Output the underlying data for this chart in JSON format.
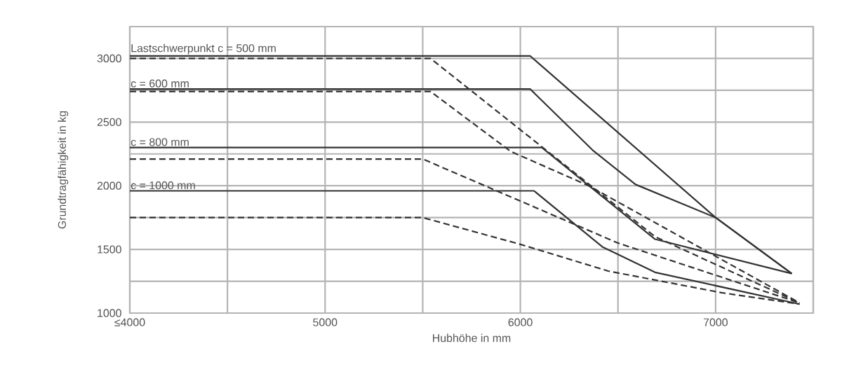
{
  "chart_data": {
    "type": "line",
    "xlabel": "Hubhöhe in mm",
    "ylabel": "Grundtragfähigkeit in kg",
    "xlim": [
      4000,
      7500
    ],
    "ylim": [
      1000,
      3250
    ],
    "xticks": [
      {
        "value": 4000,
        "label": "≤4000"
      },
      {
        "value": 4500,
        "label": null
      },
      5000,
      {
        "value": 5500,
        "label": null
      },
      6000,
      {
        "value": 6500,
        "label": null
      },
      7000,
      {
        "value": 7500,
        "label": null
      }
    ],
    "yticks": [
      1000,
      {
        "value": 1250,
        "label": null
      },
      1500,
      {
        "value": 1750,
        "label": null
      },
      2000,
      {
        "value": 2250,
        "label": null
      },
      2500,
      {
        "value": 2750,
        "label": null
      },
      3000,
      {
        "value": 3250,
        "label": null
      }
    ],
    "grid": true,
    "marker": "none",
    "series": [
      {
        "name": "Lastschwerpunkt c = 500 mm",
        "color": "#333333",
        "line_style": "solid",
        "x": [
          4000,
          6050,
          7000,
          7390
        ],
        "values": [
          3020,
          3020,
          1750,
          1310
        ]
      },
      {
        "color": "#333333",
        "line_style": "dashed",
        "x": [
          4000,
          5540,
          6690,
          7430
        ],
        "values": [
          3000,
          3000,
          1600,
          1080
        ]
      },
      {
        "name": "c = 600 mm",
        "color": "#333333",
        "line_style": "solid",
        "x": [
          4000,
          6050,
          6370,
          6590,
          7000,
          7390
        ],
        "values": [
          2760,
          2760,
          2280,
          2010,
          1750,
          1310
        ]
      },
      {
        "color": "#333333",
        "line_style": "dashed",
        "x": [
          4000,
          5540,
          5950,
          6350,
          7430
        ],
        "values": [
          2740,
          2740,
          2270,
          2000,
          1080
        ]
      },
      {
        "name": "c = 800 mm",
        "color": "#333333",
        "line_style": "solid",
        "x": [
          4000,
          6110,
          6690,
          7390
        ],
        "values": [
          2300,
          2300,
          1580,
          1310
        ]
      },
      {
        "color": "#333333",
        "line_style": "dashed",
        "x": [
          4000,
          5500,
          6500,
          7430
        ],
        "values": [
          2210,
          2210,
          1550,
          1080
        ]
      },
      {
        "name": "c = 1000 mm",
        "color": "#333333",
        "line_style": "solid",
        "x": [
          4000,
          6070,
          6420,
          6690,
          7430
        ],
        "values": [
          1960,
          1960,
          1520,
          1320,
          1070
        ]
      },
      {
        "color": "#333333",
        "line_style": "dashed",
        "x": [
          4000,
          5500,
          6000,
          6450,
          7030,
          7430
        ],
        "values": [
          1750,
          1750,
          1540,
          1330,
          1160,
          1070
        ]
      }
    ]
  }
}
